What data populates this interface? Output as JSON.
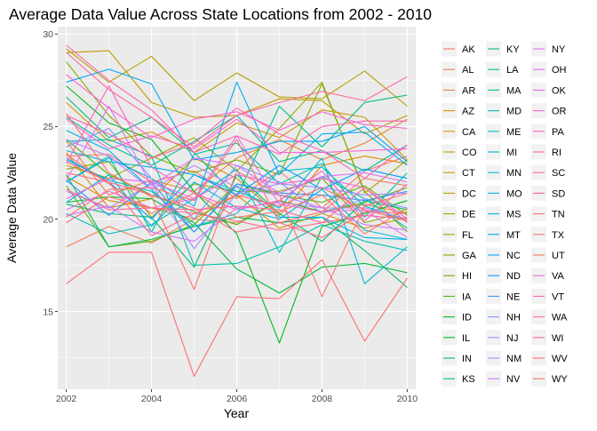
{
  "chart_data": {
    "type": "line",
    "title": "Average Data Value Across State Locations from 2002 - 2010",
    "xlabel": "Year",
    "ylabel": "Average Data Value",
    "xlim": [
      2001.8,
      2010.2
    ],
    "ylim": [
      10.8,
      30.4
    ],
    "x": [
      2002,
      2003,
      2004,
      2005,
      2006,
      2007,
      2008,
      2009,
      2010
    ],
    "x_ticks": [
      2002,
      2004,
      2006,
      2008,
      2010
    ],
    "y_ticks": [
      15,
      20,
      25,
      30
    ],
    "grid": true,
    "legend_position": "right",
    "series": [
      {
        "name": "AK",
        "color": "#F8766D",
        "values": [
          23.4,
          23.5,
          22.0,
          22.6,
          21.1,
          22.6,
          20.6,
          22.6,
          23.4
        ]
      },
      {
        "name": "AL",
        "color": "#F27D53",
        "values": [
          18.5,
          19.6,
          18.7,
          20.0,
          19.8,
          21.0,
          20.4,
          20.8,
          20.3
        ]
      },
      {
        "name": "AR",
        "color": "#EA8331",
        "values": [
          24.2,
          21.3,
          22.1,
          21.5,
          23.3,
          24.3,
          23.2,
          24.1,
          25.4
        ]
      },
      {
        "name": "AZ",
        "color": "#E18A00",
        "values": [
          23.6,
          20.6,
          21.1,
          23.3,
          22.2,
          20.2,
          22.9,
          23.4,
          23.0
        ]
      },
      {
        "name": "CA",
        "color": "#D89000",
        "values": [
          22.3,
          21.0,
          20.6,
          20.0,
          21.3,
          19.5,
          20.3,
          19.5,
          20.1
        ]
      },
      {
        "name": "CO",
        "color": "#CD9600",
        "values": [
          26.3,
          24.2,
          24.7,
          23.6,
          25.2,
          24.4,
          25.9,
          25.5,
          23.2
        ]
      },
      {
        "name": "CT",
        "color": "#C09B00",
        "values": [
          29.0,
          29.1,
          26.3,
          25.5,
          25.6,
          26.5,
          26.4,
          24.6,
          25.6
        ]
      },
      {
        "name": "DC",
        "color": "#B3A000",
        "values": [
          29.2,
          27.4,
          28.8,
          26.4,
          27.9,
          26.6,
          26.5,
          28.0,
          26.1
        ]
      },
      {
        "name": "DE",
        "color": "#A3A500",
        "values": [
          22.9,
          22.2,
          23.3,
          24.4,
          22.6,
          24.9,
          27.4,
          21.4,
          23.2
        ]
      },
      {
        "name": "FL",
        "color": "#93AA00",
        "values": [
          22.7,
          23.1,
          20.1,
          21.9,
          21.5,
          21.5,
          22.2,
          19.8,
          20.4
        ]
      },
      {
        "name": "GA",
        "color": "#81AD00",
        "values": [
          28.5,
          25.6,
          23.4,
          22.5,
          23.2,
          22.4,
          27.3,
          21.5,
          19.3
        ]
      },
      {
        "name": "HI",
        "color": "#6BB100",
        "values": [
          21.8,
          18.5,
          18.8,
          19.7,
          21.9,
          21.3,
          20.9,
          21.8,
          20.2
        ]
      },
      {
        "name": "IA",
        "color": "#4FB400",
        "values": [
          24.3,
          22.4,
          21.3,
          20.4,
          19.7,
          21.0,
          20.4,
          20.9,
          21.7
        ]
      },
      {
        "name": "ID",
        "color": "#00B81F",
        "values": [
          27.2,
          25.2,
          24.3,
          21.5,
          19.2,
          13.3,
          19.6,
          20.3,
          21.0
        ]
      },
      {
        "name": "IL",
        "color": "#00BA38",
        "values": [
          20.9,
          21.2,
          21.1,
          19.8,
          17.3,
          16.0,
          17.4,
          17.6,
          17.1
        ]
      },
      {
        "name": "IN",
        "color": "#00BC56",
        "values": [
          22.4,
          18.5,
          18.9,
          19.6,
          20.1,
          19.8,
          20.1,
          18.3,
          16.3
        ]
      },
      {
        "name": "KS",
        "color": "#00BE6C",
        "values": [
          20.8,
          20.3,
          20.1,
          17.4,
          22.4,
          20.3,
          18.8,
          21.0,
          20.5
        ]
      },
      {
        "name": "KY",
        "color": "#00BF7D",
        "values": [
          26.6,
          24.4,
          25.5,
          23.6,
          21.2,
          26.1,
          23.9,
          26.3,
          26.7
        ]
      },
      {
        "name": "LA",
        "color": "#00C08E",
        "values": [
          25.5,
          24.0,
          22.9,
          24.2,
          25.6,
          23.1,
          23.7,
          22.6,
          24.0
        ]
      },
      {
        "name": "MA",
        "color": "#00C09E",
        "values": [
          22.0,
          23.4,
          19.3,
          23.5,
          24.1,
          21.9,
          23.0,
          20.1,
          22.5
        ]
      },
      {
        "name": "MD",
        "color": "#00C0AE",
        "values": [
          24.2,
          24.3,
          23.4,
          17.5,
          17.6,
          18.5,
          19.7,
          18.8,
          18.3
        ]
      },
      {
        "name": "ME",
        "color": "#00BFBC",
        "values": [
          20.3,
          19.2,
          19.7,
          21.1,
          22.7,
          18.2,
          22.3,
          21.1,
          19.5
        ]
      },
      {
        "name": "MI",
        "color": "#00BDCA",
        "values": [
          23.2,
          22.1,
          21.5,
          19.6,
          20.3,
          22.6,
          22.8,
          20.7,
          19.9
        ]
      },
      {
        "name": "MN",
        "color": "#00BAD7",
        "values": [
          23.7,
          23.1,
          22.8,
          22.4,
          21.5,
          20.6,
          23.3,
          16.5,
          18.5
        ]
      },
      {
        "name": "MO",
        "color": "#00B6E2",
        "values": [
          20.9,
          22.4,
          19.6,
          22.0,
          20.6,
          20.0,
          21.6,
          19.4,
          18.9
        ]
      },
      {
        "name": "MS",
        "color": "#00B1EC",
        "values": [
          24.8,
          23.7,
          21.6,
          19.3,
          21.8,
          20.1,
          20.1,
          19.0,
          18.9
        ]
      },
      {
        "name": "MT",
        "color": "#00ABF5",
        "values": [
          22.0,
          23.3,
          22.2,
          20.7,
          27.4,
          22.4,
          24.6,
          24.7,
          22.9
        ]
      },
      {
        "name": "NC",
        "color": "#00A5FC",
        "values": [
          27.4,
          28.1,
          27.3,
          23.2,
          23.6,
          24.2,
          24.2,
          25.0,
          23.1
        ]
      },
      {
        "name": "ND",
        "color": "#009DFF",
        "values": [
          23.3,
          22.0,
          20.0,
          22.4,
          21.3,
          22.9,
          21.6,
          22.7,
          22.2
        ]
      },
      {
        "name": "NE",
        "color": "#3A93FF",
        "values": [
          22.1,
          20.2,
          22.0,
          19.3,
          21.9,
          21.4,
          21.3,
          21.0,
          21.5
        ]
      },
      {
        "name": "NH",
        "color": "#7F96FF",
        "values": [
          23.9,
          24.9,
          22.2,
          20.0,
          22.9,
          22.0,
          20.3,
          21.1,
          20.6
        ]
      },
      {
        "name": "NJ",
        "color": "#9E8CFF",
        "values": [
          21.5,
          20.6,
          21.9,
          18.4,
          21.4,
          21.9,
          21.7,
          21.3,
          21.4
        ]
      },
      {
        "name": "NM",
        "color": "#B983FF",
        "values": [
          24.3,
          23.4,
          21.6,
          22.9,
          21.7,
          21.3,
          20.6,
          20.6,
          20.0
        ]
      },
      {
        "name": "NV",
        "color": "#CE79FF",
        "values": [
          20.2,
          20.7,
          19.3,
          18.8,
          20.6,
          20.9,
          20.6,
          19.7,
          19.4
        ]
      },
      {
        "name": "NY",
        "color": "#DE71F9",
        "values": [
          22.1,
          26.1,
          21.8,
          23.3,
          22.9,
          21.4,
          22.3,
          22.5,
          22.0
        ]
      },
      {
        "name": "OH",
        "color": "#EA6BEF",
        "values": [
          20.5,
          21.5,
          20.6,
          21.1,
          24.5,
          20.8,
          20.4,
          20.5,
          19.0
        ]
      },
      {
        "name": "OK",
        "color": "#F464E4",
        "values": [
          21.1,
          22.2,
          22.0,
          21.1,
          22.4,
          21.9,
          22.2,
          21.7,
          20.0
        ]
      },
      {
        "name": "OR",
        "color": "#FA62D5",
        "values": [
          25.4,
          23.8,
          24.5,
          23.8,
          25.4,
          23.6,
          23.6,
          23.7,
          23.8
        ]
      },
      {
        "name": "PA",
        "color": "#FE61C3",
        "values": [
          23.0,
          27.2,
          22.8,
          21.4,
          20.5,
          21.0,
          22.6,
          19.9,
          21.9
        ]
      },
      {
        "name": "RI",
        "color": "#FF62B0",
        "values": [
          25.6,
          24.6,
          23.3,
          24.1,
          26.0,
          24.6,
          23.7,
          22.2,
          24.0
        ]
      },
      {
        "name": "SC",
        "color": "#FF659D",
        "values": [
          21.6,
          20.5,
          20.6,
          20.5,
          20.7,
          20.5,
          19.8,
          20.2,
          20.0
        ]
      },
      {
        "name": "SD",
        "color": "#FF6889",
        "values": [
          23.1,
          22.0,
          21.3,
          20.6,
          19.3,
          19.8,
          19.0,
          20.4,
          20.3
        ]
      },
      {
        "name": "TN",
        "color": "#FF6C74",
        "values": [
          19.8,
          21.2,
          20.6,
          20.3,
          21.3,
          20.7,
          21.7,
          20.5,
          19.9
        ]
      },
      {
        "name": "TX",
        "color": "#F8766D",
        "values": [
          20.1,
          21.6,
          21.7,
          21.0,
          24.3,
          19.8,
          20.4,
          22.2,
          21.8
        ]
      },
      {
        "name": "UT",
        "color": "#F47A62",
        "values": [
          23.5,
          21.9,
          20.3,
          21.4,
          20.1,
          20.4,
          21.3,
          19.2,
          20.6
        ]
      },
      {
        "name": "VA",
        "color": "#FA62D5",
        "values": [
          27.8,
          26.0,
          24.4,
          25.4,
          25.8,
          24.8,
          25.8,
          25.1,
          24.9
        ]
      },
      {
        "name": "VT",
        "color": "#FF62B0",
        "values": [
          29.4,
          27.5,
          25.9,
          23.6,
          24.5,
          23.5,
          25.0,
          25.3,
          25.3
        ]
      },
      {
        "name": "WA",
        "color": "#FF66A0",
        "values": [
          29.0,
          27.0,
          25.5,
          23.9,
          25.6,
          26.3,
          26.9,
          26.4,
          27.7
        ]
      },
      {
        "name": "WI",
        "color": "#FF6C8A",
        "values": [
          22.5,
          22.0,
          19.1,
          20.3,
          19.9,
          19.4,
          19.8,
          21.7,
          19.8
        ]
      },
      {
        "name": "WV",
        "color": "#FF6C74",
        "values": [
          16.5,
          18.2,
          18.2,
          11.5,
          15.8,
          15.7,
          17.8,
          13.4,
          16.8
        ]
      },
      {
        "name": "WY",
        "color": "#F8766D",
        "values": [
          25.7,
          22.5,
          21.2,
          16.2,
          22.6,
          21.3,
          15.8,
          20.7,
          21.4
        ]
      }
    ]
  }
}
